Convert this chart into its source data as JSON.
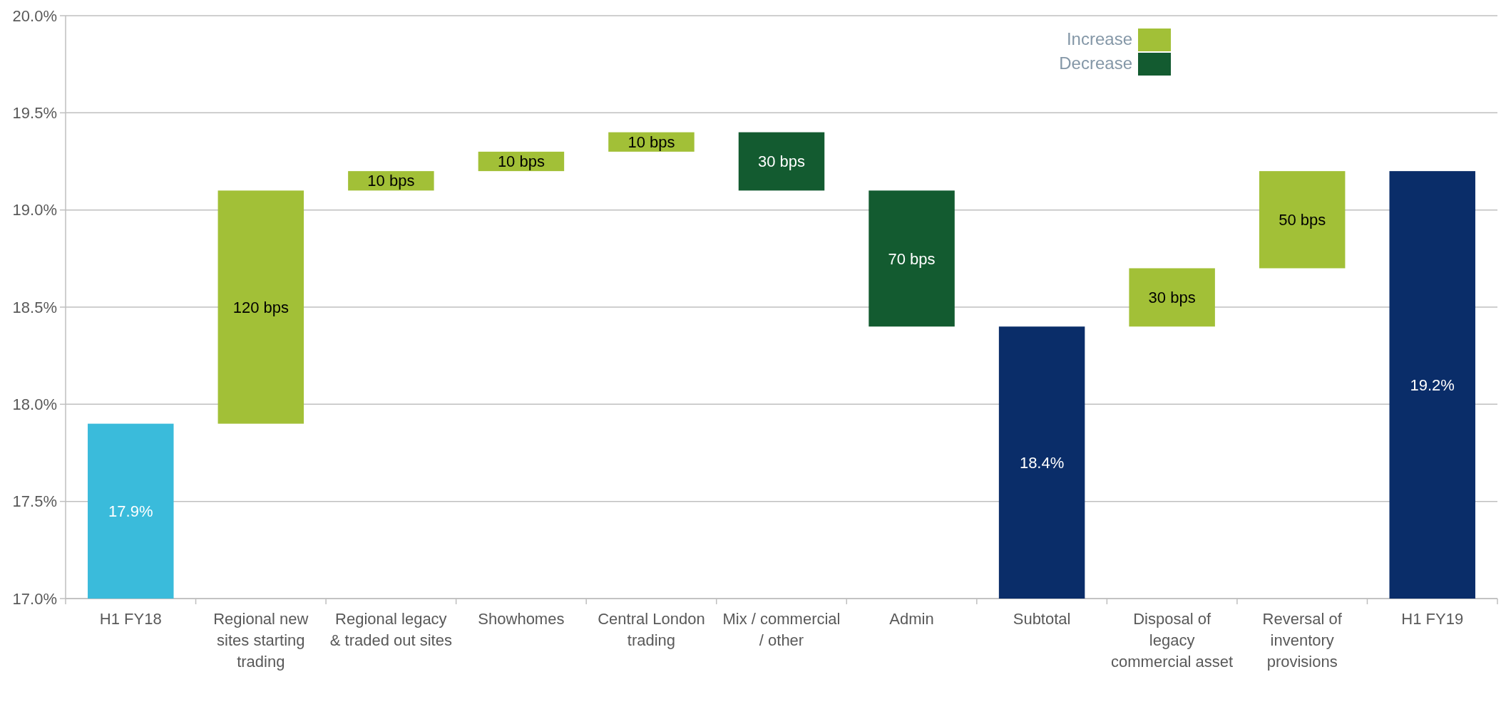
{
  "chart_data": {
    "type": "bar",
    "categories": [
      "H1 FY18",
      "Regional new sites starting trading",
      "Regional legacy & traded out sites",
      "Showhomes",
      "Central London trading",
      "Mix / commercial / other",
      "Admin",
      "Subtotal",
      "Disposal of legacy commercial asset",
      "Reversal of inventory provisions",
      "H1 FY19"
    ],
    "series": [
      {
        "name": "Increase",
        "color": "#a2c037",
        "base": [
          null,
          17.9,
          19.1,
          19.2,
          19.3,
          null,
          null,
          null,
          18.4,
          18.7,
          null
        ],
        "values": [
          null,
          1.2,
          0.1,
          0.1,
          0.1,
          null,
          null,
          null,
          0.3,
          0.5,
          null
        ]
      },
      {
        "name": "Decrease",
        "color": "#135b30",
        "base": [
          null,
          null,
          null,
          null,
          null,
          19.4,
          19.1,
          null,
          null,
          null,
          null
        ],
        "values": [
          null,
          null,
          null,
          null,
          null,
          -0.3,
          -0.7,
          null,
          null,
          null,
          null
        ]
      },
      {
        "colors": [
          "#3abbdb",
          null,
          null,
          null,
          null,
          null,
          null,
          "#0a2d69",
          null,
          null,
          "#0a2d69"
        ],
        "values": [
          17.9,
          null,
          null,
          null,
          null,
          null,
          null,
          18.4,
          null,
          null,
          19.2
        ],
        "value_labels": [
          "17.9%",
          null,
          null,
          null,
          null,
          null,
          null,
          "18.4%",
          null,
          null,
          "19.2%"
        ]
      }
    ],
    "annotations": [
      "120 bps",
      {
        "text": "10 bps",
        "x": "Regional legacy & traded out sites",
        "y": 19.2
      },
      {
        "text": "10 bps",
        "x": "Showhomes",
        "y": 19.3
      },
      {
        "text": "10 bps",
        "x": "Central London trading",
        "y": 19.4
      },
      {
        "text": "30 bps",
        "x": "Mix / commercial / other",
        "y": 19.1
      },
      "70 bps",
      {
        "text": "30 bps",
        "x": "Disposal of legacy commercial asset",
        "y": 18.7
      },
      {
        "text": "50 bps",
        "x": "Reversal of inventory provisions",
        "y": 19.2
      }
    ],
    "ylim": [
      17.0,
      20.0
    ],
    "yticks": [
      {
        "value": 17.0,
        "label": "17.0%"
      },
      {
        "value": 17.5,
        "label": "17.5%"
      },
      {
        "value": 18.0,
        "label": "18.0%"
      },
      {
        "value": 18.5,
        "label": "18.5%"
      },
      {
        "value": 19.0,
        "label": "19.0%"
      },
      {
        "value": 19.5,
        "label": "19.5%"
      },
      {
        "value": 20.0,
        "label": "20.0%"
      }
    ],
    "grid": "y",
    "legend": "top right"
  }
}
